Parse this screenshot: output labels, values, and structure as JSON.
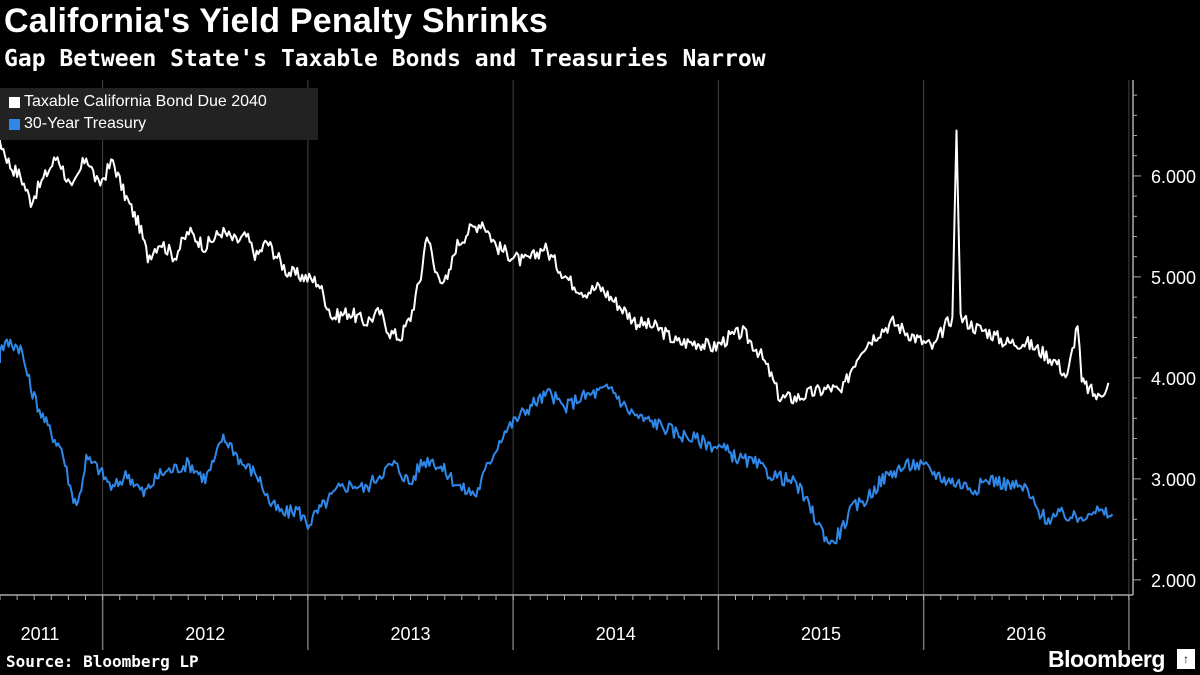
{
  "header": {
    "title": "California's Yield Penalty Shrinks",
    "subtitle": "Gap Between State's Taxable Bonds and Treasuries Narrow"
  },
  "footer": {
    "source": "Source: Bloomberg LP",
    "brand": "Bloomberg",
    "brand_badge": "↑"
  },
  "colors": {
    "background": "#000000",
    "series_california": "#ffffff",
    "series_treasury": "#2f87e8",
    "legend_background": "#222222"
  },
  "chart_data": {
    "type": "line",
    "title": "California's Yield Penalty Shrinks",
    "subtitle": "Gap Between State's Taxable Bonds and Treasuries Narrow",
    "xlabel": "",
    "ylabel": "",
    "x_range": [
      2011.0,
      2016.52
    ],
    "ylim": [
      1.85,
      6.95
    ],
    "x_ticks": [
      {
        "value": 2011.0,
        "label": "2011"
      },
      {
        "value": 2012.0,
        "label": "2012"
      },
      {
        "value": 2013.0,
        "label": "2013"
      },
      {
        "value": 2014.0,
        "label": "2014"
      },
      {
        "value": 2015.0,
        "label": "2015"
      },
      {
        "value": 2016.0,
        "label": "2016"
      }
    ],
    "y_ticks": [
      {
        "value": 2.0,
        "label": "2.000"
      },
      {
        "value": 3.0,
        "label": "3.000"
      },
      {
        "value": 4.0,
        "label": "4.000"
      },
      {
        "value": 5.0,
        "label": "5.000"
      },
      {
        "value": 6.0,
        "label": "6.000"
      }
    ],
    "axis_side": "right",
    "grid": "vertical",
    "legend_position": "top-left",
    "series": [
      {
        "name": "Taxable California Bond Due 2040",
        "color": "#ffffff",
        "points": [
          [
            2010.9,
            6.3
          ],
          [
            2010.95,
            6.4
          ],
          [
            2011.0,
            6.35
          ],
          [
            2011.05,
            6.1
          ],
          [
            2011.1,
            6.0
          ],
          [
            2011.15,
            5.75
          ],
          [
            2011.22,
            6.0
          ],
          [
            2011.28,
            6.2
          ],
          [
            2011.35,
            5.85
          ],
          [
            2011.42,
            6.2
          ],
          [
            2011.48,
            5.9
          ],
          [
            2011.55,
            6.15
          ],
          [
            2011.6,
            5.85
          ],
          [
            2011.68,
            5.5
          ],
          [
            2011.72,
            5.2
          ],
          [
            2011.78,
            5.35
          ],
          [
            2011.85,
            5.2
          ],
          [
            2011.92,
            5.45
          ],
          [
            2012.0,
            5.3
          ],
          [
            2012.08,
            5.45
          ],
          [
            2012.15,
            5.35
          ],
          [
            2012.2,
            5.4
          ],
          [
            2012.25,
            5.2
          ],
          [
            2012.3,
            5.35
          ],
          [
            2012.4,
            5.05
          ],
          [
            2012.48,
            5.0
          ],
          [
            2012.55,
            4.95
          ],
          [
            2012.62,
            4.6
          ],
          [
            2012.7,
            4.65
          ],
          [
            2012.78,
            4.55
          ],
          [
            2012.85,
            4.65
          ],
          [
            2012.9,
            4.45
          ],
          [
            2012.95,
            4.4
          ],
          [
            2013.0,
            4.6
          ],
          [
            2013.05,
            5.0
          ],
          [
            2013.08,
            5.45
          ],
          [
            2013.12,
            5.05
          ],
          [
            2013.18,
            4.95
          ],
          [
            2013.22,
            5.3
          ],
          [
            2013.28,
            5.45
          ],
          [
            2013.35,
            5.55
          ],
          [
            2013.42,
            5.3
          ],
          [
            2013.5,
            5.2
          ],
          [
            2013.55,
            5.15
          ],
          [
            2013.6,
            5.2
          ],
          [
            2013.65,
            5.3
          ],
          [
            2013.72,
            5.1
          ],
          [
            2013.78,
            4.95
          ],
          [
            2013.85,
            4.85
          ],
          [
            2013.92,
            4.9
          ],
          [
            2014.0,
            4.75
          ],
          [
            2014.1,
            4.55
          ],
          [
            2014.2,
            4.5
          ],
          [
            2014.3,
            4.35
          ],
          [
            2014.4,
            4.35
          ],
          [
            2014.48,
            4.3
          ],
          [
            2014.55,
            4.4
          ],
          [
            2014.62,
            4.45
          ],
          [
            2014.7,
            4.25
          ],
          [
            2014.75,
            4.05
          ],
          [
            2014.8,
            3.8
          ],
          [
            2014.88,
            3.8
          ],
          [
            2014.95,
            3.85
          ],
          [
            2015.05,
            3.9
          ],
          [
            2015.1,
            3.85
          ],
          [
            2015.15,
            4.1
          ],
          [
            2015.2,
            4.3
          ],
          [
            2015.28,
            4.45
          ],
          [
            2015.35,
            4.55
          ],
          [
            2015.42,
            4.45
          ],
          [
            2015.5,
            4.35
          ],
          [
            2015.55,
            4.3
          ],
          [
            2015.6,
            4.5
          ],
          [
            2015.64,
            4.6
          ],
          [
            2015.66,
            6.45
          ],
          [
            2015.68,
            4.6
          ],
          [
            2015.75,
            4.5
          ],
          [
            2015.82,
            4.45
          ],
          [
            2015.9,
            4.35
          ],
          [
            2016.0,
            4.35
          ],
          [
            2016.08,
            4.25
          ],
          [
            2016.15,
            4.15
          ],
          [
            2016.2,
            4.0
          ],
          [
            2016.25,
            4.55
          ],
          [
            2016.27,
            3.95
          ],
          [
            2016.3,
            3.9
          ],
          [
            2016.35,
            3.8
          ],
          [
            2016.4,
            3.95
          ]
        ]
      },
      {
        "name": "30-Year Treasury",
        "color": "#2f87e8",
        "points": [
          [
            2010.9,
            4.2
          ],
          [
            2010.95,
            4.25
          ],
          [
            2011.0,
            4.3
          ],
          [
            2011.05,
            4.35
          ],
          [
            2011.1,
            4.3
          ],
          [
            2011.15,
            3.9
          ],
          [
            2011.2,
            3.65
          ],
          [
            2011.25,
            3.45
          ],
          [
            2011.3,
            3.3
          ],
          [
            2011.35,
            2.85
          ],
          [
            2011.38,
            2.75
          ],
          [
            2011.42,
            3.2
          ],
          [
            2011.48,
            3.1
          ],
          [
            2011.55,
            2.9
          ],
          [
            2011.62,
            3.05
          ],
          [
            2011.7,
            2.85
          ],
          [
            2011.78,
            3.05
          ],
          [
            2011.85,
            3.1
          ],
          [
            2011.92,
            3.15
          ],
          [
            2012.0,
            3.0
          ],
          [
            2012.05,
            3.2
          ],
          [
            2012.08,
            3.4
          ],
          [
            2012.12,
            3.35
          ],
          [
            2012.18,
            3.15
          ],
          [
            2012.25,
            3.05
          ],
          [
            2012.32,
            2.75
          ],
          [
            2012.38,
            2.65
          ],
          [
            2012.45,
            2.7
          ],
          [
            2012.5,
            2.55
          ],
          [
            2012.58,
            2.75
          ],
          [
            2012.65,
            2.9
          ],
          [
            2012.72,
            2.95
          ],
          [
            2012.78,
            2.9
          ],
          [
            2012.85,
            3.05
          ],
          [
            2012.92,
            3.15
          ],
          [
            2013.0,
            2.95
          ],
          [
            2013.05,
            3.15
          ],
          [
            2013.1,
            3.2
          ],
          [
            2013.18,
            3.05
          ],
          [
            2013.25,
            2.9
          ],
          [
            2013.32,
            2.85
          ],
          [
            2013.38,
            3.15
          ],
          [
            2013.45,
            3.45
          ],
          [
            2013.52,
            3.6
          ],
          [
            2013.6,
            3.75
          ],
          [
            2013.68,
            3.85
          ],
          [
            2013.75,
            3.7
          ],
          [
            2013.82,
            3.8
          ],
          [
            2013.9,
            3.85
          ],
          [
            2013.98,
            3.9
          ],
          [
            2014.05,
            3.7
          ],
          [
            2014.12,
            3.6
          ],
          [
            2014.2,
            3.55
          ],
          [
            2014.3,
            3.45
          ],
          [
            2014.38,
            3.4
          ],
          [
            2014.45,
            3.35
          ],
          [
            2014.52,
            3.3
          ],
          [
            2014.6,
            3.2
          ],
          [
            2014.68,
            3.15
          ],
          [
            2014.75,
            3.05
          ],
          [
            2014.82,
            3.0
          ],
          [
            2014.88,
            2.95
          ],
          [
            2014.95,
            2.7
          ],
          [
            2015.0,
            2.5
          ],
          [
            2015.05,
            2.35
          ],
          [
            2015.1,
            2.5
          ],
          [
            2015.15,
            2.7
          ],
          [
            2015.22,
            2.8
          ],
          [
            2015.3,
            3.0
          ],
          [
            2015.38,
            3.1
          ],
          [
            2015.45,
            3.15
          ],
          [
            2015.52,
            3.1
          ],
          [
            2015.6,
            3.0
          ],
          [
            2015.68,
            2.95
          ],
          [
            2015.75,
            2.9
          ],
          [
            2015.82,
            3.0
          ],
          [
            2015.9,
            2.95
          ],
          [
            2016.0,
            2.9
          ],
          [
            2016.05,
            2.7
          ],
          [
            2016.1,
            2.6
          ],
          [
            2016.18,
            2.65
          ],
          [
            2016.25,
            2.6
          ],
          [
            2016.32,
            2.7
          ],
          [
            2016.38,
            2.65
          ],
          [
            2016.42,
            2.65
          ]
        ]
      }
    ]
  }
}
